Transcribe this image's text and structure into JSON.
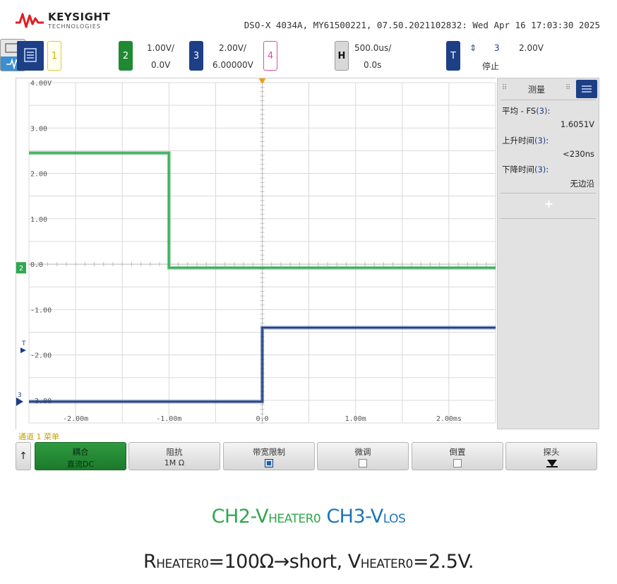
{
  "header": {
    "brand": "KEYSIGHT",
    "brand_sub": "TECHNOLOGIES",
    "scope_info": "DSO-X 4034A, MY61500221, 07.50.2021102832: Wed Apr 16 17:03:30 2025"
  },
  "channels": {
    "ch1": {
      "num": "1"
    },
    "ch2": {
      "num": "2",
      "scale": "1.00V/",
      "offset": "0.0V"
    },
    "ch3": {
      "num": "3",
      "scale": "2.00V/",
      "offset": "6.00000V"
    },
    "ch4": {
      "num": "4"
    },
    "horizontal": {
      "label": "H",
      "scale": "500.0us/",
      "delay": "0.0s"
    },
    "trigger": {
      "num": "T",
      "source": "3",
      "level": "2.00V",
      "state": "停止"
    }
  },
  "plot": {
    "y_tick_labels": [
      "4.00V",
      "3.00",
      "2.00",
      "1.00",
      "0.0",
      "-1.00",
      "-2.00",
      "-3.00"
    ],
    "x_tick_labels": [
      "-2.00m",
      "-1.00m",
      "0.0",
      "1.00m",
      "2.00ms"
    ],
    "ch2_marker": "2",
    "ch3_marker": "3",
    "trig_marker": "T"
  },
  "chart_data": {
    "type": "line",
    "x_unit": "ms",
    "y_unit": "V",
    "xlim": [
      -2.5,
      2.5
    ],
    "ylim": [
      -3.5,
      4.0
    ],
    "series": [
      {
        "name": "CH2",
        "color": "#2fa84f",
        "x": [
          -2.5,
          -1.0,
          -1.0,
          2.5
        ],
        "y": [
          2.45,
          2.45,
          -0.08,
          -0.08
        ]
      },
      {
        "name": "CH3",
        "color": "#1d3f86",
        "x": [
          -2.5,
          0.0,
          0.0,
          2.5
        ],
        "y": [
          -3.03,
          -3.03,
          -1.4,
          -1.4
        ]
      }
    ],
    "grid": true
  },
  "measurements": {
    "title": "测量",
    "items": [
      {
        "label": "平均 - FS",
        "ch": "(3)",
        "value": "1.6051V"
      },
      {
        "label": "上升时间",
        "ch": "(3)",
        "value": "<230ns"
      },
      {
        "label": "下降时间",
        "ch": "(3)",
        "value": "无边沿"
      }
    ],
    "add_symbol": "+"
  },
  "softkeys": {
    "caption": "通道 1 菜单",
    "back_symbol": "↑",
    "keys": [
      {
        "label": "耦合",
        "sub": "直流DC"
      },
      {
        "label": "阻抗",
        "sub": "1M Ω"
      },
      {
        "label": "带宽限制",
        "sub": ""
      },
      {
        "label": "微调",
        "sub": ""
      },
      {
        "label": "倒置",
        "sub": ""
      },
      {
        "label": "探头",
        "sub": ""
      }
    ]
  },
  "caption": {
    "line1_ch2_prefix": "CH2-V",
    "line1_ch2_sub": "HEATER0",
    "line1_ch3_prefix": "CH3-V",
    "line1_ch3_sub": "LOS",
    "line2_r": "R",
    "line2_r_sub": "HEATER0",
    "line2_mid": "=100Ω→short, V",
    "line2_v_sub": "HEATER0",
    "line2_end": "=2.5V."
  }
}
